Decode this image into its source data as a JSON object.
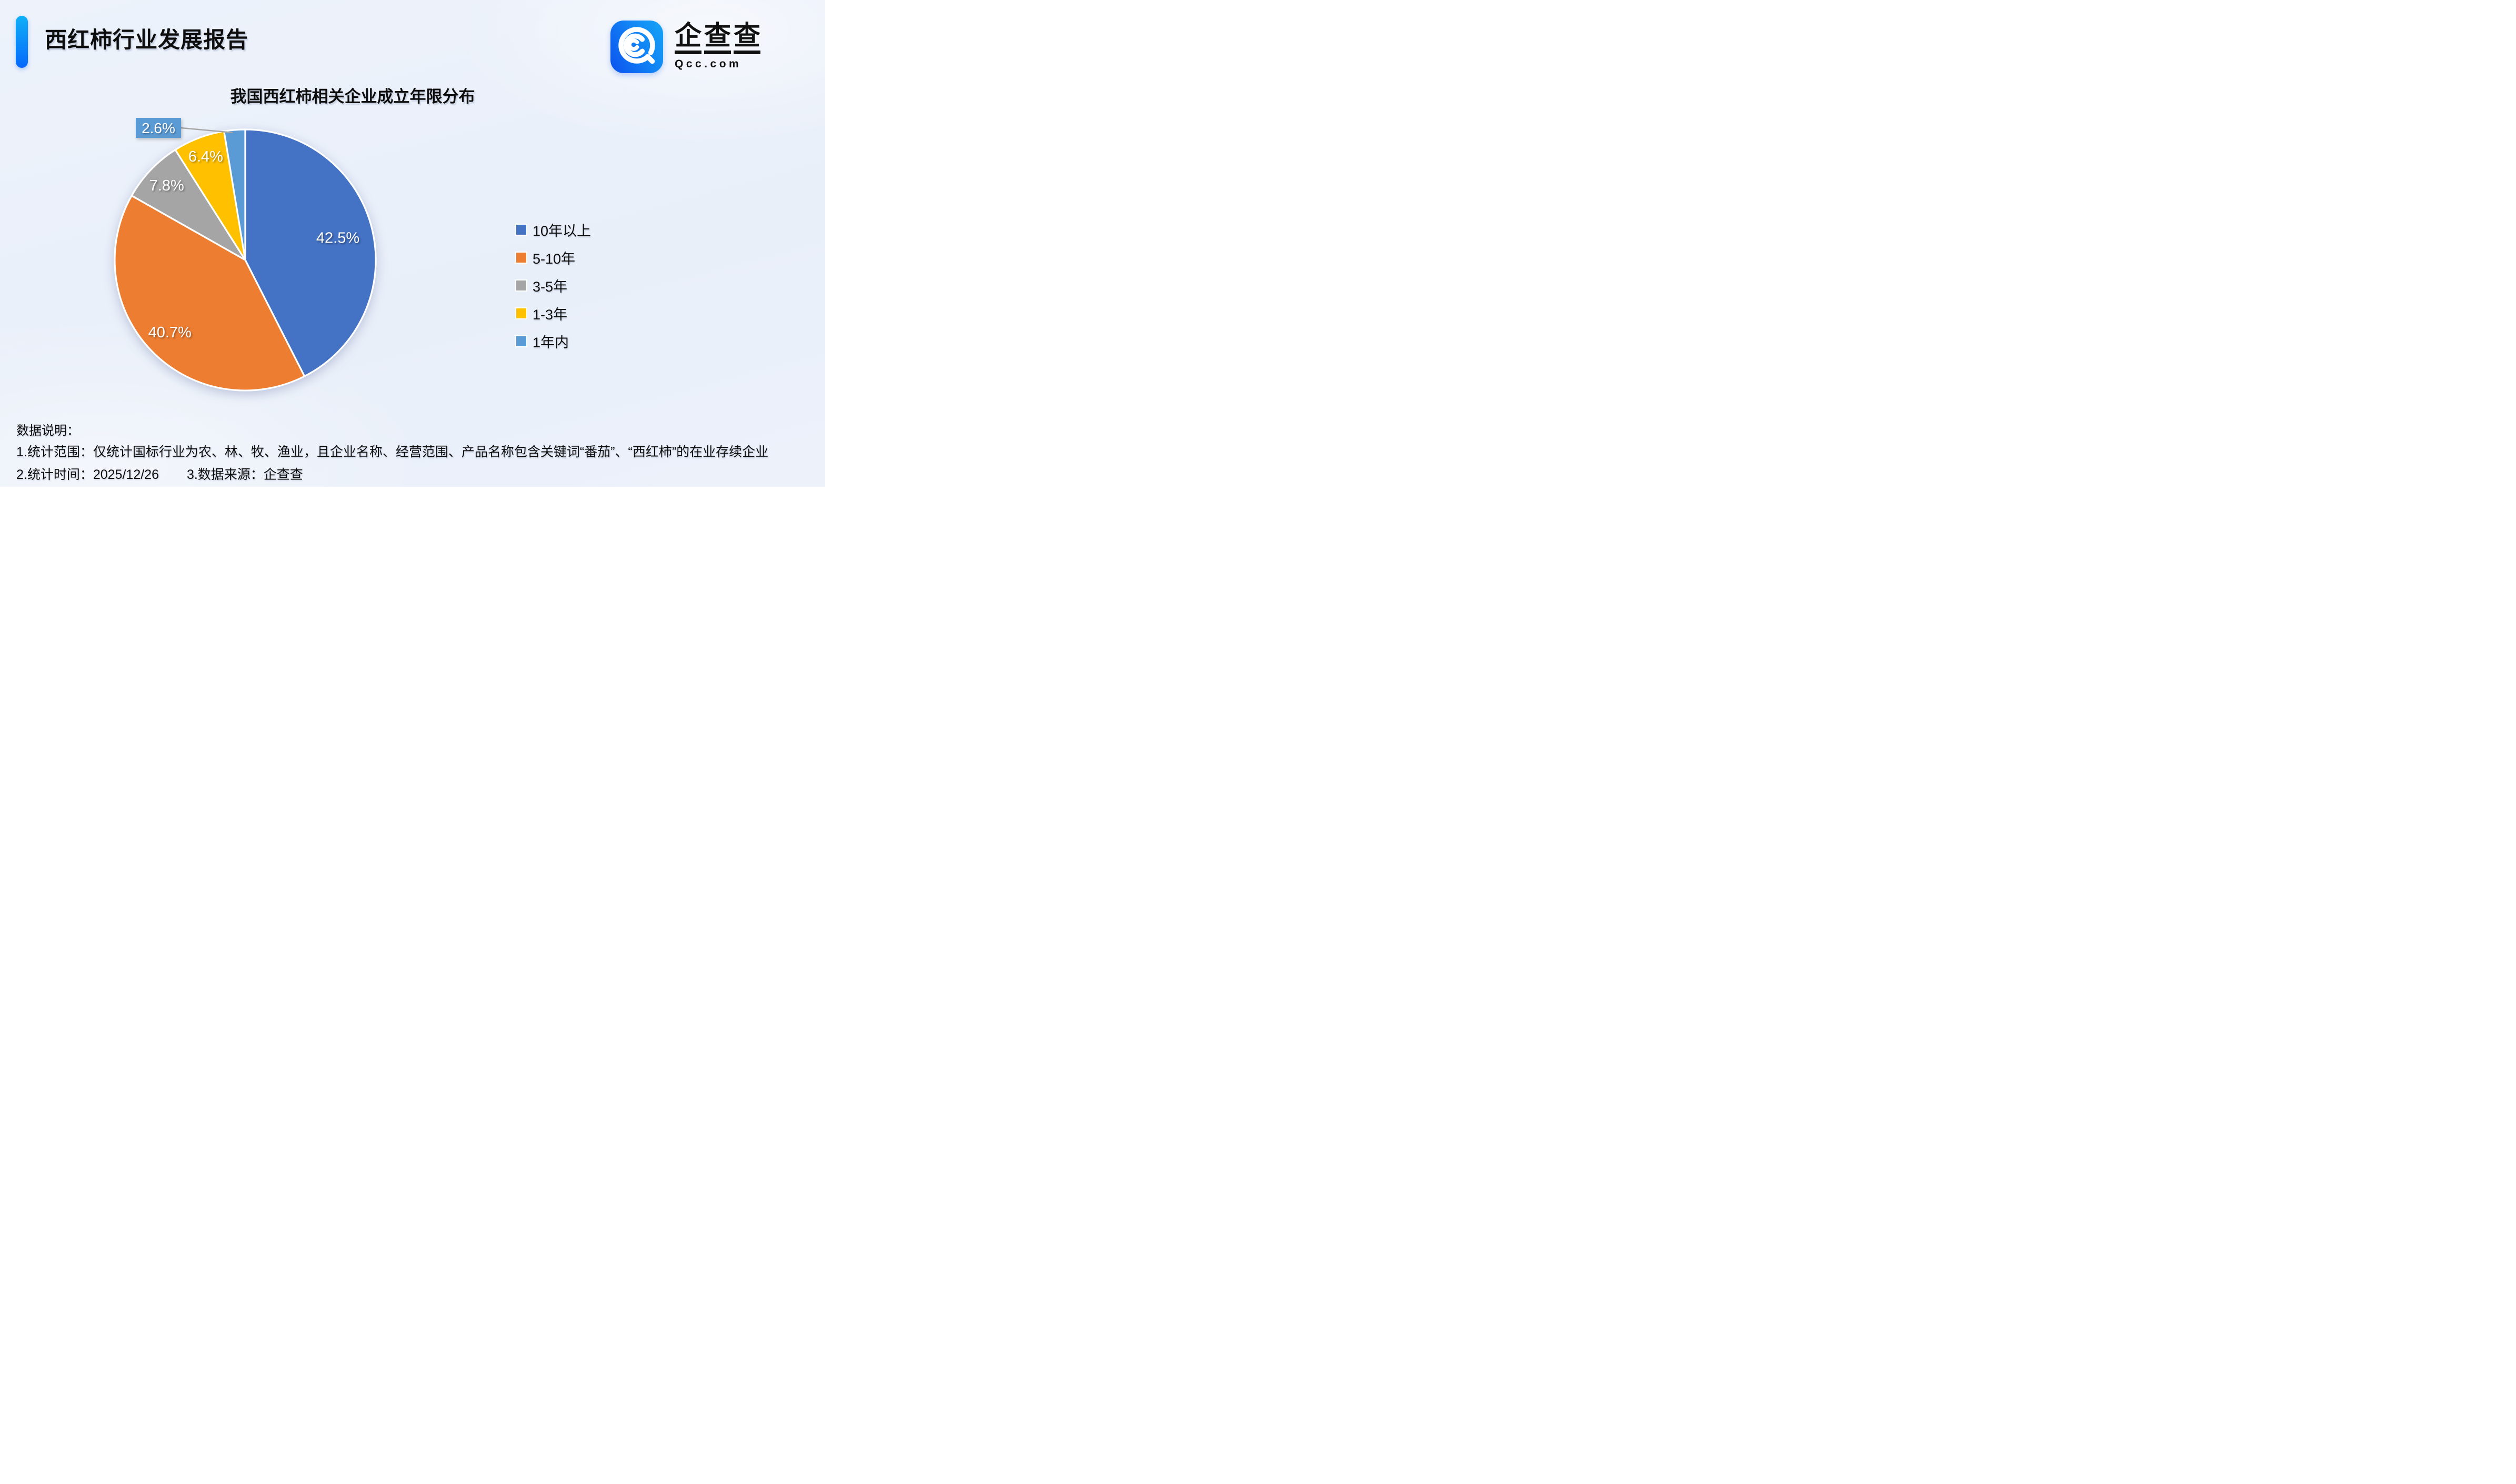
{
  "header": {
    "title": "西红柿行业发展报告",
    "logo": {
      "name": "企查查",
      "chars": [
        "企",
        "查",
        "查"
      ],
      "domain": "Qcc.com"
    }
  },
  "chart_data": {
    "type": "pie",
    "title": "我国西红柿相关企业成立年限分布",
    "labels": [
      "10年以上",
      "5-10年",
      "3-5年",
      "1-3年",
      "1年内"
    ],
    "values": [
      42.5,
      40.7,
      7.8,
      6.4,
      2.6
    ],
    "unit": "%",
    "colors": [
      "#4472C4",
      "#ED7D31",
      "#A5A5A5",
      "#FFC000",
      "#5B9BD5"
    ],
    "legend_position": "right",
    "label_format": "percent",
    "start_angle_deg": 0,
    "direction": "clockwise",
    "callout": {
      "slice": "1年内",
      "value_label": "2.6%",
      "box_color": "#5B9BD5",
      "leader_color": "#A6A6A6"
    }
  },
  "footer": {
    "heading": "数据说明：",
    "note1": "1.统计范围：仅统计国标行业为农、林、牧、渔业，且企业名称、经营范围、产品名称包含关键词“番茄”、“西红柿”的在业存续企业",
    "note2": "2.统计时间：2025/12/26",
    "note3": "3.数据来源：企查查"
  },
  "colors": {
    "background": "#EDF1FA",
    "accent_bar_top": "#0FB0F8",
    "accent_bar_bottom": "#0668FB",
    "logo_blue_dark": "#0C52EE",
    "logo_blue_light": "#14A5F6",
    "text": "#0D0D0D",
    "pie_label_text": "#FFFFFF"
  }
}
